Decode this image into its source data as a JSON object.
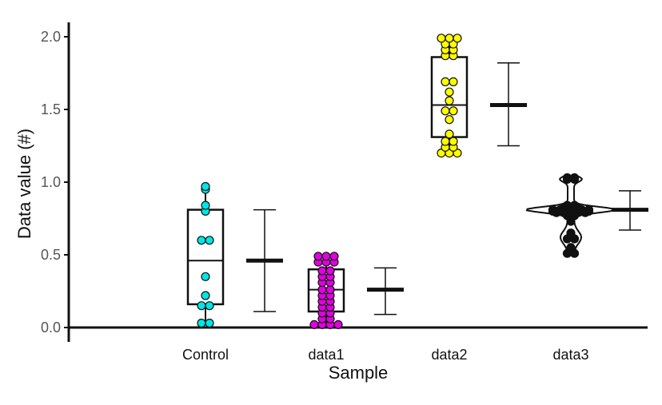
{
  "chart_data": {
    "type": "box-violin-dot",
    "xlabel": "Sample",
    "ylabel": "Data value (#)",
    "ylim": [
      0,
      2.0
    ],
    "yticks": [
      0.0,
      0.5,
      1.0,
      1.5,
      2.0
    ],
    "ytick_labels": [
      "0.0",
      "0.5",
      "1.0",
      "1.5",
      "2.0"
    ],
    "categories": [
      "Control",
      "data1",
      "data2",
      "data3"
    ],
    "grid": false,
    "series": [
      {
        "category": "Control",
        "color": "#00e5e5",
        "box": {
          "q1": 0.16,
          "median": 0.46,
          "q3": 0.81,
          "whisker_low": 0.03,
          "whisker_high": 0.97
        },
        "mean": 0.46,
        "error_low": 0.11,
        "error_high": 0.81,
        "points": [
          0.03,
          0.03,
          0.15,
          0.15,
          0.22,
          0.35,
          0.6,
          0.6,
          0.8,
          0.84,
          0.95,
          0.97
        ]
      },
      {
        "category": "data1",
        "color": "#e000e0",
        "box": {
          "q1": 0.11,
          "median": 0.26,
          "q3": 0.4,
          "whisker_low": 0.02,
          "whisker_high": 0.49
        },
        "mean": 0.26,
        "error_low": 0.09,
        "error_high": 0.41,
        "points": [
          0.02,
          0.02,
          0.02,
          0.02,
          0.06,
          0.06,
          0.1,
          0.1,
          0.14,
          0.14,
          0.18,
          0.18,
          0.22,
          0.22,
          0.26,
          0.26,
          0.31,
          0.31,
          0.35,
          0.35,
          0.39,
          0.39,
          0.45,
          0.45,
          0.45,
          0.49,
          0.49,
          0.49
        ]
      },
      {
        "category": "data2",
        "color": "#ffff00",
        "box": {
          "q1": 1.31,
          "median": 1.53,
          "q3": 1.86,
          "whisker_low": 1.2,
          "whisker_high": 1.99
        },
        "mean": 1.53,
        "error_low": 1.25,
        "error_high": 1.82,
        "points": [
          1.2,
          1.2,
          1.2,
          1.24,
          1.24,
          1.28,
          1.28,
          1.33,
          1.43,
          1.49,
          1.49,
          1.56,
          1.62,
          1.69,
          1.69,
          1.87,
          1.87,
          1.91,
          1.91,
          1.95,
          1.95,
          1.99,
          1.99,
          1.99
        ]
      },
      {
        "category": "data3",
        "color": "#111111",
        "violin": {
          "min": 0.5,
          "max": 1.04,
          "peak": 0.81
        },
        "mean": 0.81,
        "error_low": 0.67,
        "error_high": 0.94,
        "points": [
          0.51,
          0.51,
          0.55,
          0.61,
          0.61,
          0.65,
          0.73,
          0.77,
          0.77,
          0.79,
          0.79,
          0.79,
          0.79,
          0.79,
          0.8,
          0.8,
          0.8,
          0.8,
          0.8,
          0.8,
          0.81,
          0.81,
          0.81,
          0.81,
          0.81,
          0.81,
          0.82,
          0.82,
          0.82,
          0.83,
          0.83,
          0.84,
          0.84,
          1.02,
          1.02,
          1.03,
          1.03
        ]
      }
    ]
  }
}
